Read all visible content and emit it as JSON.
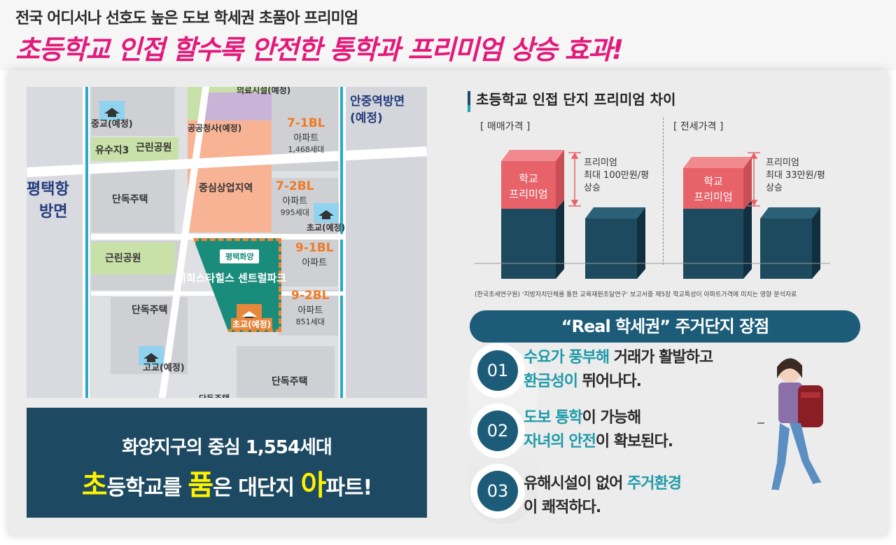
{
  "header": {
    "subtitle": "전국 어디서나 선호도 높은 도보 학세권 초품아 프리미엄",
    "title": "초등학교 인접 할수록 안전한 통학과 프리미엄 상승 효과!"
  },
  "map": {
    "labels": {
      "medical": "의료시설(예정)",
      "middle_school": "중교(예정)",
      "public_office": "공공청사(예정)",
      "yusuji": "유수지3",
      "park1": "근린공원",
      "pyeongtaek_port": "평택항",
      "direction": "방면",
      "house1": "단독주택",
      "commercial": "중심상업지역",
      "park2": "근린공원",
      "house2": "단독주택",
      "high_school": "고교(예정)",
      "house3": "단독주택",
      "house4": "단독주택",
      "anjung": "안중역방면",
      "anjung_sub": "(예정)",
      "elementary1": "초교(예정)",
      "elementary2": "초교(예정)",
      "site_badge": "평택화양",
      "site_name": "서희스타힐스 센트럴파크"
    },
    "blocks": [
      {
        "name": "7-1BL",
        "type": "아파트",
        "units": "1,468세대"
      },
      {
        "name": "7-2BL",
        "type": "아파트",
        "units": "995세대"
      },
      {
        "name": "9-1BL",
        "type": "아파트",
        "units": ""
      },
      {
        "name": "9-2BL",
        "type": "아파트",
        "units": "851세대"
      }
    ],
    "caption_line1": "화양지구의 중심 1,554세대",
    "caption_line2": {
      "c1": "초",
      "t1": "등학교를 ",
      "c2": "품",
      "t2": "은 대단지 ",
      "c3": "아",
      "t3": "파트!"
    }
  },
  "premium_chart": {
    "title": "초등학교 인접 단지 프리미엄 차이",
    "groups": [
      {
        "label": "[ 매매가격 ]",
        "bar_label": "학교\n프리미엄",
        "premium_l1": "프리미엄",
        "premium_l2": "최대 100만원/평",
        "premium_l3": "상승"
      },
      {
        "label": "[ 전세가격 ]",
        "bar_label": "학교\n프리미엄",
        "premium_l1": "프리미엄",
        "premium_l2": "최대 33만원/평",
        "premium_l3": "상승"
      }
    ],
    "source_note": "(한국조세연구원) '지방자치단체를 통한 교육재원조달연구' 보고서중 제5장 학교특성이 아파트가격에 미치는 영향 분석자료",
    "colors": {
      "premium": "#e8626a",
      "base": "#1d4a5e"
    }
  },
  "advantages": {
    "title": "“Real 학세권” 주거단지 장점",
    "items": [
      {
        "num": "01",
        "hl1": "수요가 풍부해",
        "t1": " 거래가 활발하고",
        "hl2": "환금성이",
        "t2": " 뛰어나다."
      },
      {
        "num": "02",
        "hl1": "도보 통학",
        "t1": "이 가능해",
        "hl2": "자녀의 안전",
        "t2": "이 확보된다."
      },
      {
        "num": "03",
        "hl1": "",
        "t1": "유해시설이 없어 ",
        "hl2": "주거환경",
        "t2": "이 쾌적하다."
      }
    ]
  }
}
